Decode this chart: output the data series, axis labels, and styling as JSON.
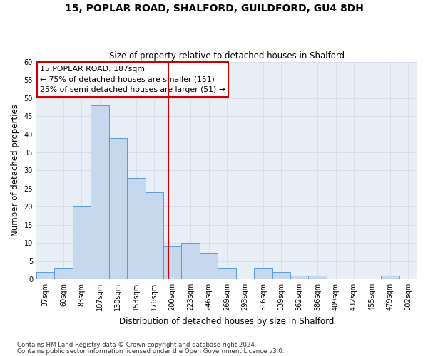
{
  "title1": "15, POPLAR ROAD, SHALFORD, GUILDFORD, GU4 8DH",
  "title2": "Size of property relative to detached houses in Shalford",
  "xlabel": "Distribution of detached houses by size in Shalford",
  "ylabel": "Number of detached properties",
  "footnote1": "Contains HM Land Registry data © Crown copyright and database right 2024.",
  "footnote2": "Contains public sector information licensed under the Open Government Licence v3.0.",
  "bin_labels": [
    "37sqm",
    "60sqm",
    "83sqm",
    "107sqm",
    "130sqm",
    "153sqm",
    "176sqm",
    "200sqm",
    "223sqm",
    "246sqm",
    "269sqm",
    "293sqm",
    "316sqm",
    "339sqm",
    "362sqm",
    "386sqm",
    "409sqm",
    "432sqm",
    "455sqm",
    "479sqm",
    "502sqm"
  ],
  "bar_heights": [
    2,
    3,
    20,
    48,
    39,
    28,
    24,
    9,
    10,
    7,
    3,
    0,
    3,
    2,
    1,
    1,
    0,
    0,
    0,
    1,
    0
  ],
  "bar_color": "#c5d8ed",
  "bar_edge_color": "#5b9bd5",
  "ylim": [
    0,
    60
  ],
  "yticks": [
    0,
    5,
    10,
    15,
    20,
    25,
    30,
    35,
    40,
    45,
    50,
    55,
    60
  ],
  "vline_x": 6.78,
  "vline_color": "#cc0000",
  "annotation_line1": "15 POPLAR ROAD: 187sqm",
  "annotation_line2": "← 75% of detached houses are smaller (151)",
  "annotation_line3": "25% of semi-detached houses are larger (51) →",
  "grid_color": "#d4dce8",
  "background_color": "#ffffff",
  "plot_bg_color": "#e8eef5"
}
